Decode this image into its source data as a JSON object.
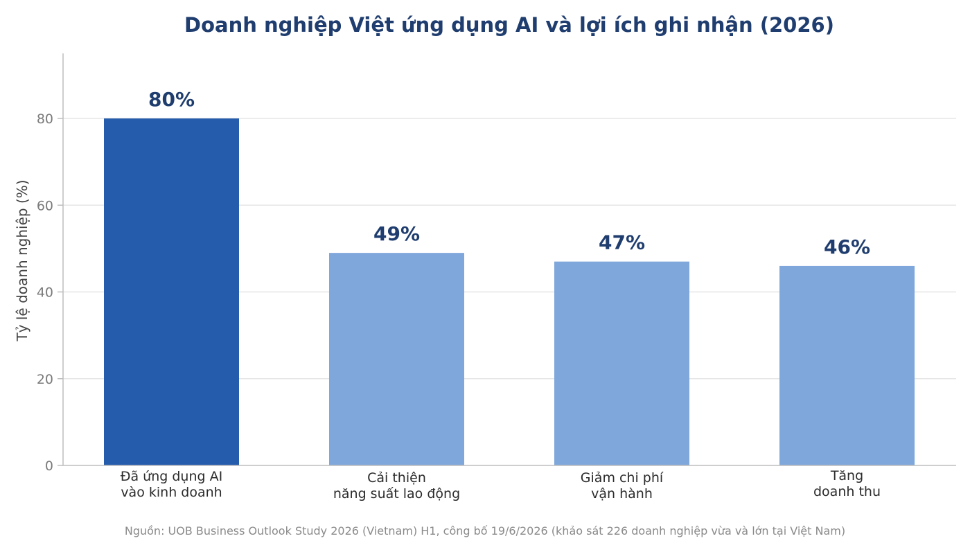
{
  "chart_data": {
    "type": "bar",
    "title": "Doanh nghiệp Việt ứng dụng AI và lợi ích ghi nhận (2026)",
    "ylabel": "Tỷ lệ doanh nghiệp (%)",
    "xlabel": "",
    "ylim": [
      0,
      95
    ],
    "yticks": [
      0,
      20,
      40,
      60,
      80
    ],
    "grid": true,
    "categories": [
      [
        "Đã ứng dụng AI",
        "vào kinh doanh"
      ],
      [
        "Cải thiện",
        "năng suất lao động"
      ],
      [
        "Giảm chi phí",
        "vận hành"
      ],
      [
        "Tăng",
        "doanh thu"
      ]
    ],
    "values": [
      80,
      49,
      47,
      46
    ],
    "data_labels": [
      "80%",
      "49%",
      "47%",
      "46%"
    ],
    "colors": [
      "#255cab",
      "#80a7db",
      "#80a7db",
      "#80a7db"
    ],
    "source": "Nguồn: UOB Business Outlook Study 2026 (Vietnam) H1, công bố 19/6/2026 (khảo sát 226 doanh nghiệp vừa và lớn tại Việt Nam)"
  }
}
